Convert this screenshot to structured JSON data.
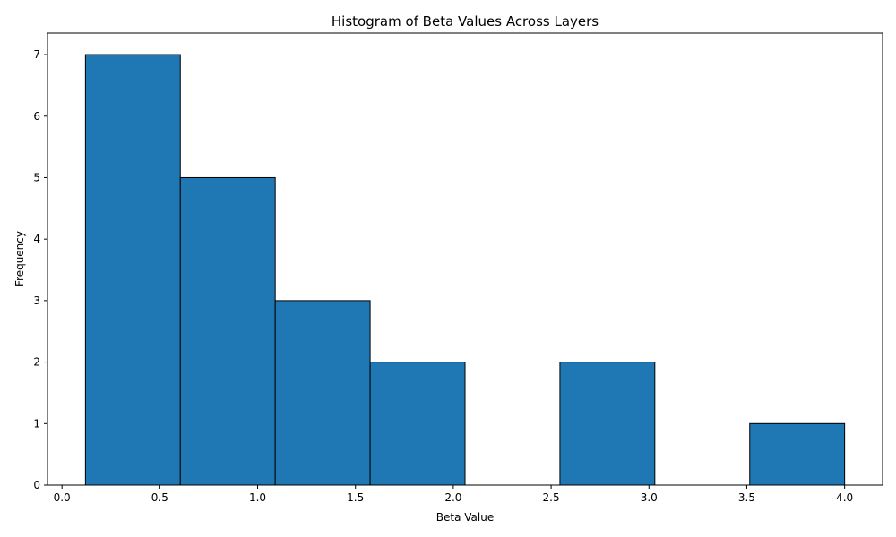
{
  "chart_data": {
    "type": "bar",
    "title": "Histogram of Beta Values Across Layers",
    "xlabel": "Beta Value",
    "ylabel": "Frequency",
    "bins": [
      {
        "x0": 0.12,
        "x1": 0.605,
        "count": 7
      },
      {
        "x0": 0.605,
        "x1": 1.09,
        "count": 5
      },
      {
        "x0": 1.09,
        "x1": 1.575,
        "count": 3
      },
      {
        "x0": 1.575,
        "x1": 2.06,
        "count": 2
      },
      {
        "x0": 2.06,
        "x1": 2.545,
        "count": 0
      },
      {
        "x0": 2.545,
        "x1": 3.03,
        "count": 2
      },
      {
        "x0": 3.03,
        "x1": 3.515,
        "count": 0
      },
      {
        "x0": 3.515,
        "x1": 4.0,
        "count": 1
      }
    ],
    "xlim": [
      -0.074,
      4.194
    ],
    "ylim": [
      0,
      7.35
    ],
    "xticks": [
      "0.0",
      "0.5",
      "1.0",
      "1.5",
      "2.0",
      "2.5",
      "3.0",
      "3.5",
      "4.0"
    ],
    "yticks": [
      "0",
      "1",
      "2",
      "3",
      "4",
      "5",
      "6",
      "7"
    ],
    "grid": false,
    "bar_color": "#1f77b4",
    "edge_color": "#000000"
  }
}
